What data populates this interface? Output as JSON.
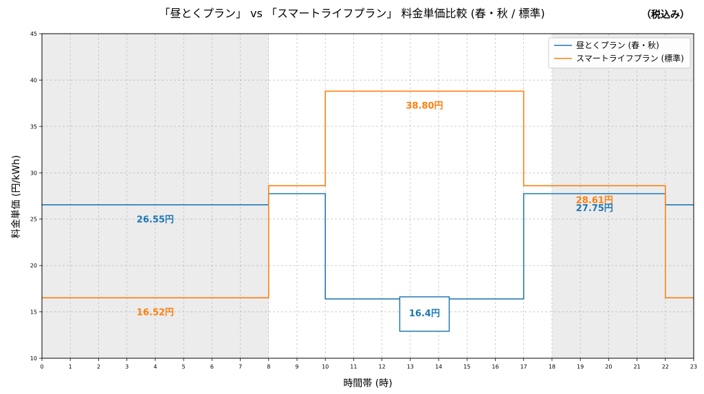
{
  "header": {
    "title": "「昼とくプラン」 vs 「スマートライフプラン」 料金単価比較 (春・秋 / 標準)",
    "note": "（税込み）"
  },
  "chart_data": {
    "type": "line",
    "step": "post",
    "xlabel": "時間帯 (時)",
    "ylabel": "料金単価 (円/kWh)",
    "xlim": [
      0,
      23
    ],
    "ylim": [
      10,
      45
    ],
    "xticks": [
      0,
      1,
      2,
      3,
      4,
      5,
      6,
      7,
      8,
      9,
      10,
      11,
      12,
      13,
      14,
      15,
      16,
      17,
      18,
      19,
      20,
      21,
      22,
      23
    ],
    "yticks": [
      10,
      15,
      20,
      25,
      30,
      35,
      40,
      45
    ],
    "grid": true,
    "legend_position": "top-right",
    "shaded_x_ranges": [
      [
        0,
        8
      ],
      [
        18,
        23
      ]
    ],
    "series": [
      {
        "name": "昼とくプラン (春・秋)",
        "color": "#1f77b4",
        "x": [
          0,
          8,
          10,
          17,
          22,
          23
        ],
        "y": [
          26.55,
          27.75,
          16.4,
          27.75,
          26.55,
          26.55
        ]
      },
      {
        "name": "スマートライフプラン (標準)",
        "color": "#ff7f0e",
        "x": [
          0,
          8,
          10,
          17,
          22,
          23
        ],
        "y": [
          16.52,
          28.61,
          38.8,
          28.61,
          16.52,
          16.52
        ]
      }
    ],
    "annotations": [
      {
        "text": "26.55円",
        "x": 4,
        "y": 26.55,
        "color": "#1f77b4",
        "boxed": false
      },
      {
        "text": "16.52円",
        "x": 4,
        "y": 16.52,
        "color": "#ff7f0e",
        "boxed": false
      },
      {
        "text": "38.80円",
        "x": 13.5,
        "y": 38.8,
        "color": "#ff7f0e",
        "boxed": false
      },
      {
        "text": "16.4円",
        "x": 13.5,
        "y": 16.4,
        "color": "#1f77b4",
        "boxed": true
      },
      {
        "text": "28.61円",
        "x": 19.5,
        "y": 28.61,
        "color": "#ff7f0e",
        "boxed": false
      },
      {
        "text": "27.75円",
        "x": 19.5,
        "y": 27.75,
        "color": "#1f77b4",
        "boxed": false
      }
    ]
  }
}
